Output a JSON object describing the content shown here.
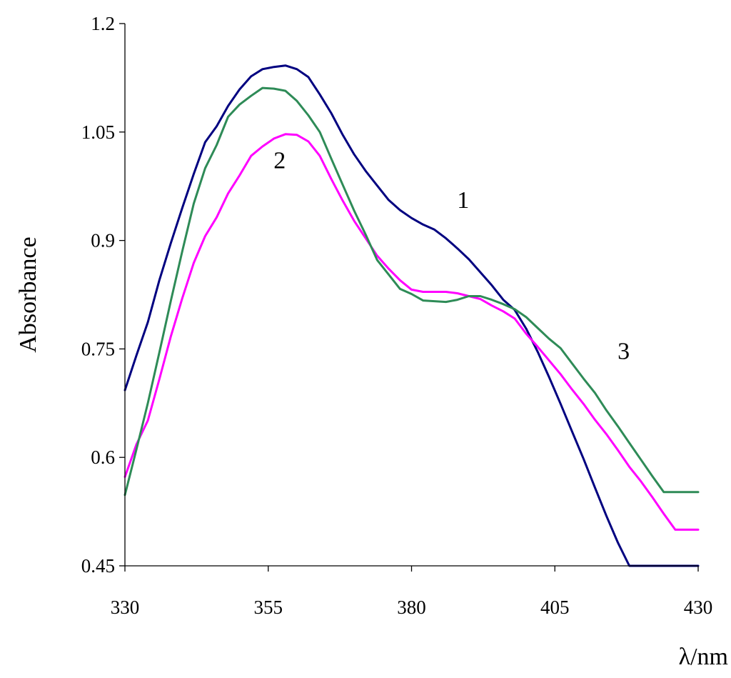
{
  "chart_data": {
    "type": "line",
    "xlabel": "λ/nm",
    "ylabel": "Absorbance",
    "xlim": [
      330,
      430
    ],
    "ylim": [
      0.45,
      1.2
    ],
    "x_ticks": [
      330,
      355,
      380,
      405,
      430
    ],
    "y_ticks": [
      0.45,
      0.6,
      0.75,
      0.9,
      1.05,
      1.2
    ],
    "y_tick_labels": [
      "0.45",
      "0.6",
      "0.75",
      "0.9",
      "1.05",
      "1.2"
    ],
    "grid": false,
    "series": [
      {
        "label": "1",
        "color": "#000080",
        "label_pos": [
          389,
          0.945
        ],
        "x": [
          330,
          332,
          334,
          336,
          338,
          340,
          342,
          344,
          346,
          348,
          350,
          352,
          354,
          356,
          358,
          360,
          362,
          364,
          366,
          368,
          370,
          372,
          374,
          376,
          378,
          380,
          382,
          384,
          386,
          388,
          390,
          392,
          394,
          396,
          398,
          400,
          402,
          404,
          406,
          408,
          410,
          412,
          414,
          416,
          418,
          420,
          422,
          424,
          426,
          428,
          430
        ],
        "y": [
          0.693,
          0.741,
          0.787,
          0.845,
          0.896,
          0.945,
          0.992,
          1.036,
          1.058,
          1.086,
          1.109,
          1.127,
          1.137,
          1.14,
          1.142,
          1.137,
          1.126,
          1.102,
          1.076,
          1.046,
          1.019,
          0.996,
          0.976,
          0.956,
          0.942,
          0.931,
          0.922,
          0.915,
          0.903,
          0.889,
          0.874,
          0.856,
          0.838,
          0.818,
          0.804,
          0.778,
          0.746,
          0.711,
          0.674,
          0.636,
          0.598,
          0.558,
          0.519,
          0.482,
          0.45,
          0.45,
          0.45,
          0.45,
          0.45,
          0.45,
          0.45
        ]
      },
      {
        "label": "2",
        "color": "#FF00FF",
        "label_pos": [
          357,
          1.0
        ],
        "x": [
          330,
          332,
          334,
          336,
          338,
          340,
          342,
          344,
          346,
          348,
          350,
          352,
          354,
          356,
          358,
          360,
          362,
          364,
          366,
          368,
          370,
          372,
          374,
          376,
          378,
          380,
          382,
          384,
          386,
          388,
          390,
          392,
          394,
          396,
          398,
          400,
          402,
          404,
          406,
          408,
          410,
          412,
          414,
          416,
          418,
          420,
          422,
          424,
          426,
          428,
          430
        ],
        "y": [
          0.573,
          0.618,
          0.651,
          0.708,
          0.767,
          0.82,
          0.869,
          0.906,
          0.932,
          0.965,
          0.99,
          1.017,
          1.03,
          1.041,
          1.047,
          1.046,
          1.037,
          1.017,
          0.985,
          0.955,
          0.927,
          0.903,
          0.879,
          0.861,
          0.845,
          0.832,
          0.829,
          0.829,
          0.829,
          0.827,
          0.823,
          0.819,
          0.81,
          0.802,
          0.792,
          0.771,
          0.753,
          0.734,
          0.715,
          0.694,
          0.674,
          0.652,
          0.632,
          0.61,
          0.587,
          0.567,
          0.545,
          0.522,
          0.5,
          0.5,
          0.5
        ]
      },
      {
        "label": "3",
        "color": "#2E8B57",
        "label_pos": [
          417,
          0.736
        ],
        "x": [
          330,
          332,
          334,
          336,
          338,
          340,
          342,
          344,
          346,
          348,
          350,
          352,
          354,
          356,
          358,
          360,
          362,
          364,
          366,
          368,
          370,
          372,
          374,
          376,
          378,
          380,
          382,
          384,
          386,
          388,
          390,
          392,
          394,
          396,
          398,
          400,
          402,
          404,
          406,
          408,
          410,
          412,
          414,
          416,
          418,
          420,
          422,
          424,
          426,
          428,
          430
        ],
        "y": [
          0.548,
          0.611,
          0.675,
          0.745,
          0.816,
          0.885,
          0.951,
          1.0,
          1.032,
          1.071,
          1.088,
          1.1,
          1.111,
          1.11,
          1.107,
          1.093,
          1.073,
          1.05,
          1.013,
          0.977,
          0.941,
          0.908,
          0.873,
          0.853,
          0.833,
          0.826,
          0.817,
          0.816,
          0.815,
          0.818,
          0.823,
          0.823,
          0.818,
          0.812,
          0.805,
          0.794,
          0.779,
          0.764,
          0.751,
          0.73,
          0.709,
          0.689,
          0.665,
          0.643,
          0.62,
          0.597,
          0.574,
          0.552,
          0.552,
          0.552,
          0.552
        ]
      }
    ]
  }
}
